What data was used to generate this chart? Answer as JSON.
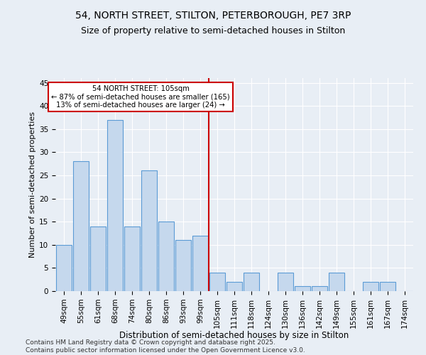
{
  "title1": "54, NORTH STREET, STILTON, PETERBOROUGH, PE7 3RP",
  "title2": "Size of property relative to semi-detached houses in Stilton",
  "xlabel": "Distribution of semi-detached houses by size in Stilton",
  "ylabel": "Number of semi-detached properties",
  "categories": [
    "49sqm",
    "55sqm",
    "61sqm",
    "68sqm",
    "74sqm",
    "80sqm",
    "86sqm",
    "93sqm",
    "99sqm",
    "105sqm",
    "111sqm",
    "118sqm",
    "124sqm",
    "130sqm",
    "136sqm",
    "142sqm",
    "149sqm",
    "155sqm",
    "161sqm",
    "167sqm",
    "174sqm"
  ],
  "values": [
    10,
    28,
    14,
    37,
    14,
    26,
    15,
    11,
    12,
    4,
    2,
    4,
    0,
    4,
    1,
    1,
    4,
    0,
    2,
    2,
    0
  ],
  "bar_color": "#c5d8ed",
  "bar_edge_color": "#5b9bd5",
  "vline_color": "#cc0000",
  "vline_index": 9,
  "annotation_text": "54 NORTH STREET: 105sqm\n← 87% of semi-detached houses are smaller (165)\n13% of semi-detached houses are larger (24) →",
  "annotation_box_color": "#cc0000",
  "background_color": "#e8eef5",
  "ylim": [
    0,
    46
  ],
  "yticks": [
    0,
    5,
    10,
    15,
    20,
    25,
    30,
    35,
    40,
    45
  ],
  "footer": "Contains HM Land Registry data © Crown copyright and database right 2025.\nContains public sector information licensed under the Open Government Licence v3.0.",
  "title1_fontsize": 10,
  "title2_fontsize": 9,
  "tick_fontsize": 7.5,
  "xlabel_fontsize": 8.5,
  "ylabel_fontsize": 8,
  "footer_fontsize": 6.5
}
